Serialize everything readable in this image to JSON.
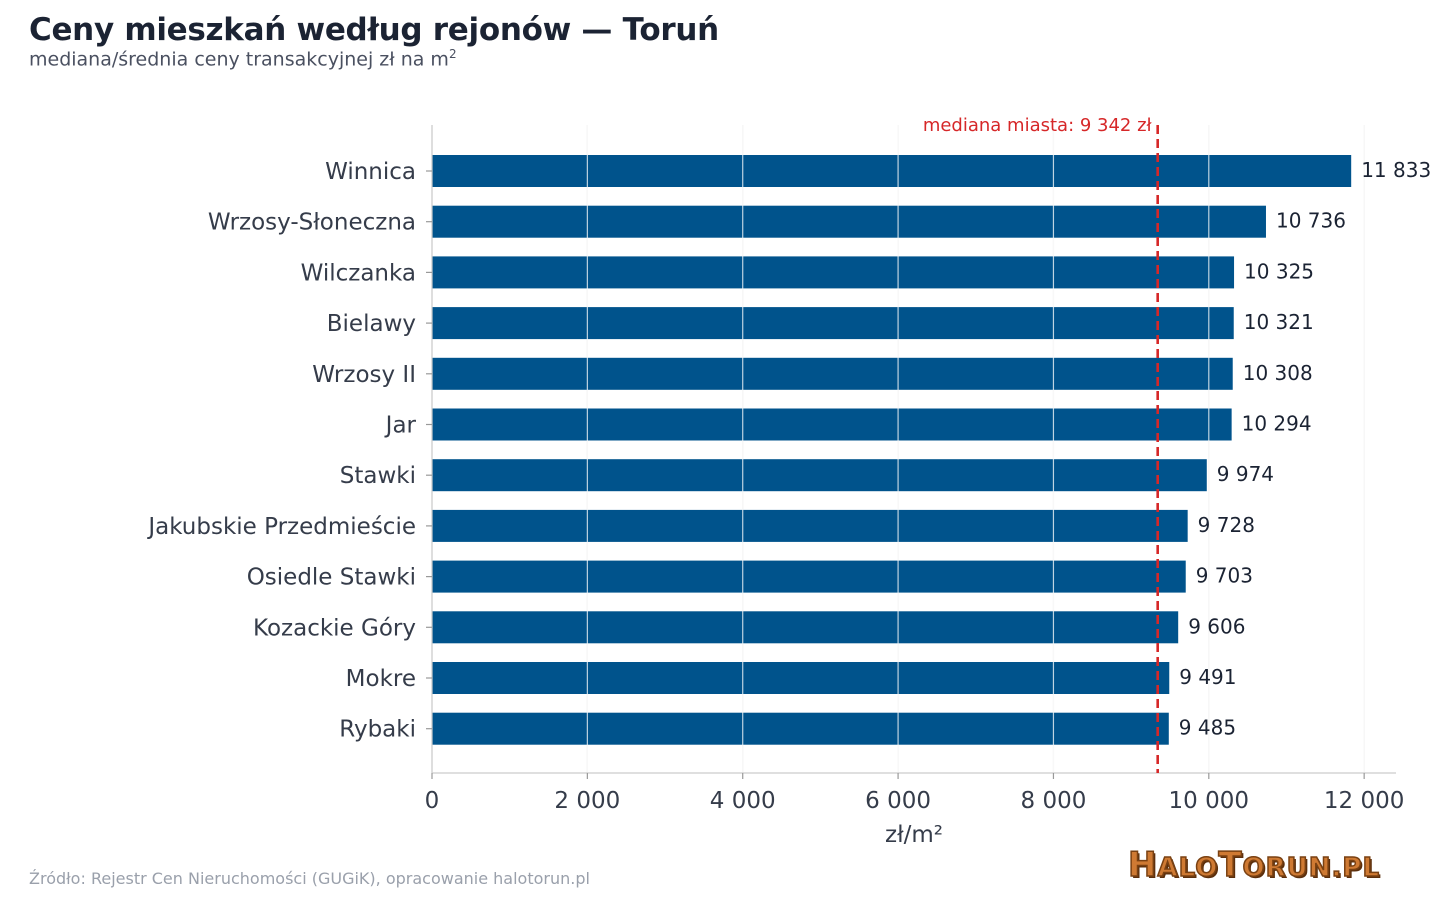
{
  "header": {
    "title": "Ceny mieszkań według rejonów — Toruń",
    "subtitle": "mediana/średnia ceny transakcyjnej zł na m",
    "subtitle_sup": "2"
  },
  "footer": {
    "source": "Źródło: Rejestr Cen Nieruchomości (GUGiK), opracowanie halotorun.pl",
    "logo_text": "HaloToruń.pl"
  },
  "colors": {
    "bar": "#00538c",
    "reference_line": "#d62728",
    "grid": "#e3e3e3"
  },
  "chart_data": {
    "type": "bar",
    "orientation": "horizontal",
    "title": "Ceny mieszkań według rejonów — Toruń",
    "subtitle": "mediana/średnia ceny transakcyjnej zł na m²",
    "xlabel": "zł/m²",
    "ylabel": "",
    "xlim": [
      0,
      12400
    ],
    "xticks": [
      0,
      2000,
      4000,
      6000,
      8000,
      10000,
      12000
    ],
    "xtick_labels": [
      "0",
      "2 000",
      "4 000",
      "6 000",
      "8 000",
      "10 000",
      "12 000"
    ],
    "grid": "vertical",
    "categories": [
      "Winnica",
      "Wrzosy-Słoneczna",
      "Wilczanka",
      "Bielawy",
      "Wrzosy II",
      "Jar",
      "Stawki",
      "Jakubskie Przedmieście",
      "Osiedle Stawki",
      "Kozackie Góry",
      "Mokre",
      "Rybaki"
    ],
    "values": [
      11833,
      10736,
      10325,
      10321,
      10308,
      10294,
      9974,
      9728,
      9703,
      9606,
      9491,
      9485
    ],
    "value_labels": [
      "11 833",
      "10 736",
      "10 325",
      "10 321",
      "10 308",
      "10 294",
      "9 974",
      "9 728",
      "9 703",
      "9 606",
      "9 491",
      "9 485"
    ],
    "reference_line": {
      "value": 9342,
      "label": "mediana miasta: 9 342 zł",
      "style": "dashed"
    }
  }
}
